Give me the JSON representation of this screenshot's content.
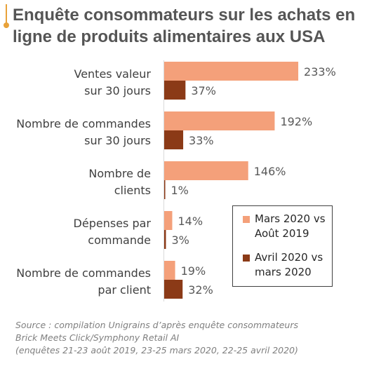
{
  "title": "Enquête consommateurs sur les achats en ligne de produits alimentaires aux USA",
  "colors": {
    "accent": "#e8a23a",
    "series1": "#f4a07a",
    "series2": "#8b3a17"
  },
  "chart_data": {
    "type": "bar",
    "orientation": "horizontal",
    "categories": [
      [
        "Ventes valeur",
        "sur 30 jours"
      ],
      [
        "Nombre de commandes",
        "sur 30 jours"
      ],
      [
        "Nombre de",
        "clients"
      ],
      [
        "Dépenses par",
        "commande"
      ],
      [
        "Nombre de commandes",
        "par client"
      ]
    ],
    "series": [
      {
        "name": "Mars 2020 vs Août 2019",
        "color": "#f4a07a",
        "values": [
          233,
          192,
          146,
          14,
          19
        ],
        "labels": [
          "233%",
          "192%",
          "146%",
          "14%",
          "19%"
        ]
      },
      {
        "name": "Avril 2020 vs mars 2020",
        "color": "#8b3a17",
        "values": [
          37,
          33,
          1,
          3,
          32
        ],
        "labels": [
          "37%",
          "33%",
          "1%",
          "3%",
          "32%"
        ]
      }
    ],
    "xlim": [
      0,
      250
    ],
    "legend": "inside-right",
    "grid": false
  },
  "legend_items": [
    {
      "lines": [
        "Mars 2020 vs",
        "Août 2019"
      ],
      "color": "#f4a07a"
    },
    {
      "lines": [
        "Avril 2020 vs",
        "mars 2020"
      ],
      "color": "#8b3a17"
    }
  ],
  "source": [
    "Source : compilation Unigrains d’après enquête consommateurs",
    "Brick Meets Click/Symphony Retail AI",
    "(enquêtes 21-23 août 2019, 23-25 mars 2020, 22-25 avril 2020)"
  ]
}
